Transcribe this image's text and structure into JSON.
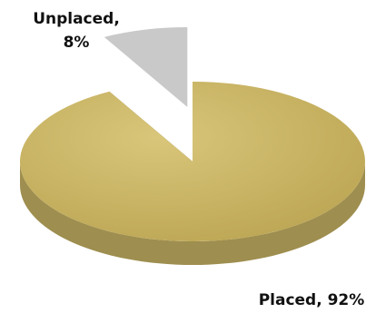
{
  "chart_data": {
    "type": "pie",
    "three_d": true,
    "values": [
      92,
      8
    ],
    "value_labels": [
      "Placed, 92%",
      "Unplaced, 8%"
    ],
    "colors": [
      "#cbb665",
      "#c9c9c9"
    ],
    "exploded": [
      false,
      true
    ]
  }
}
